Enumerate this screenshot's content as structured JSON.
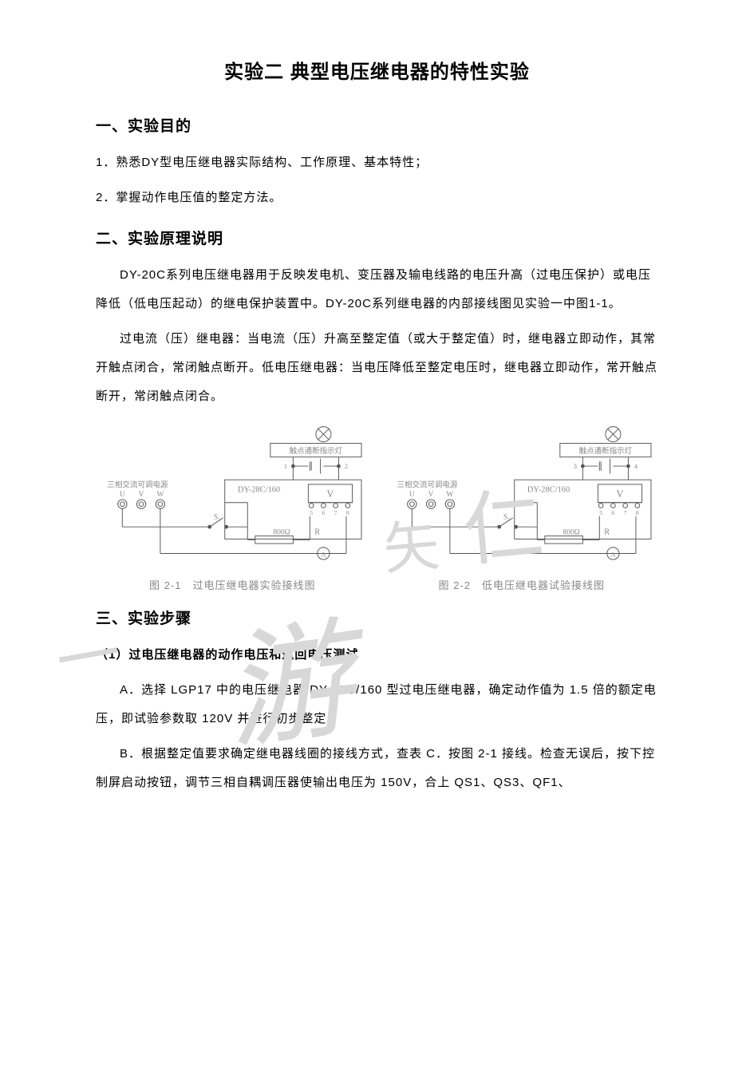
{
  "title": "实验二 典型电压继电器的特性实验",
  "sec1": {
    "heading": "一、实验目的",
    "item1": "1．熟悉DY型电压继电器实际结构、工作原理、基本特性；",
    "item2": "2．掌握动作电压值的整定方法。"
  },
  "sec2": {
    "heading": "二、实验原理说明",
    "para1": "DY-20C系列电压继电器用于反映发电机、变压器及输电线路的电压升高（过电压保护）或电压降低（低电压起动）的继电保护装置中。DY-20C系列继电器的内部接线图见实验一中图1-1。",
    "para2": "过电流（压）继电器：当电流（压）升高至整定值（或大于整定值）时，继电器立即动作，其常开触点闭合，常闭触点断开。低电压继电器：当电压降低至整定电压时，继电器立即动作，常开触点断开，常闭触点闭合。"
  },
  "diagrams": {
    "d1": {
      "caption": "图 2-1　过电压继电器实验接线图",
      "lamp_label": "触点通断指示灯",
      "source_label": "三相交流可调电源",
      "phases": [
        "U",
        "V",
        "W"
      ],
      "switch": "S₁",
      "relay": "DY-28C/160",
      "voltmeter": "V",
      "resistor_label": "800Ω",
      "resistor_name": "R",
      "terminals_top": [
        "1",
        "2"
      ],
      "terminals_v": [
        "5",
        "6",
        "7",
        "8"
      ],
      "colors": {
        "stroke": "#555555",
        "text": "#888888",
        "fill": "#ffffff"
      }
    },
    "d2": {
      "caption": "图 2-2　低电压继电器试验接线图",
      "lamp_label": "触点通断指示灯",
      "source_label": "三相交流可调电源",
      "phases": [
        "U",
        "V",
        "W"
      ],
      "switch": "S₁",
      "relay": "DY-28C/160",
      "voltmeter": "V",
      "resistor_label": "800Ω",
      "resistor_name": "R",
      "terminals_top": [
        "3",
        "4"
      ],
      "terminals_v": [
        "5",
        "6",
        "7",
        "8"
      ],
      "colors": {
        "stroke": "#555555",
        "text": "#888888",
        "fill": "#ffffff"
      }
    }
  },
  "sec3": {
    "heading": "三、实验步骤",
    "sub1": "（1）过电压继电器的动作电压和返回电压测试",
    "a": "A．选择 LGP17  中的电压继电器 DY-28C/160  型过电压继电器，确定动作值为 1.5  倍的额定电压，即试验参数取 120V  并进行初步整定。",
    "b": "B．根据整定值要求确定继电器线圈的接线方式，查表 C．按图 2-1  接线。检查无误后，按下控制屏启动按钮，调节三相自耦调压器使输出电压为  150V，合上  QS1、QS3、QF1、"
  },
  "watermark": {
    "t1": "仁",
    "t2": "矢",
    "t3": "游",
    "t4": "一"
  },
  "style": {
    "page_bg": "#ffffff",
    "text_color": "#000000",
    "caption_color": "#888888",
    "font_title_pt": 24,
    "font_h2_pt": 19,
    "font_body_pt": 15,
    "font_caption_pt": 13,
    "line_height_body": 2.4,
    "diagram_stroke": "#555555",
    "diagram_text": "#888888"
  }
}
